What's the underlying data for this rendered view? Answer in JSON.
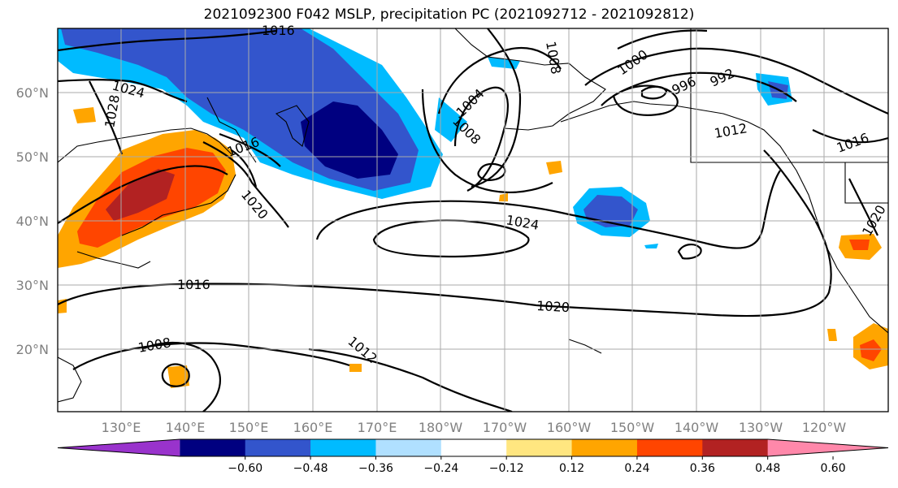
{
  "title": "2021092300 F042 MSLP, precipitation PC (2021092712 - 2021092812)",
  "lat_labels": [
    "60°N",
    "50°N",
    "40°N",
    "30°N",
    "20°N"
  ],
  "lon_labels": [
    "130°E",
    "140°E",
    "150°E",
    "160°E",
    "170°E",
    "180°W",
    "170°W",
    "160°W",
    "150°W",
    "140°W",
    "130°W",
    "120°W"
  ],
  "isobar_labels": [
    "1016",
    "1024",
    "1028",
    "1016",
    "1020",
    "1008",
    "1004",
    "1008",
    "1000",
    "996",
    "992",
    "1012",
    "1016",
    "1024",
    "1016",
    "1020",
    "1008",
    "1012",
    "1020"
  ],
  "colorbar": {
    "colors": [
      "#9933cc",
      "#000080",
      "#3355cc",
      "#00bbff",
      "#b0e0ff",
      "#ffffff",
      "#ffe680",
      "#ffa500",
      "#ff4500",
      "#b22222",
      "#ff88aa"
    ],
    "tick_labels": [
      "-0.60",
      "-0.48",
      "-0.36",
      "-0.24",
      "-0.12",
      "0.12",
      "0.24",
      "0.36",
      "0.48",
      "0.60"
    ]
  }
}
